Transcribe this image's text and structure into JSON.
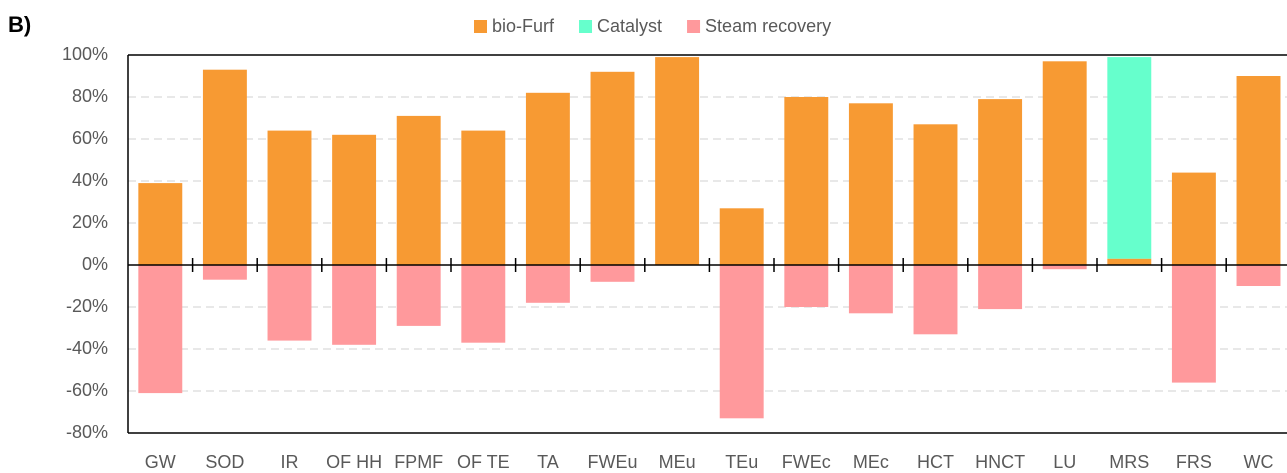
{
  "chart_data": {
    "type": "bar",
    "stacked": true,
    "panel_label": "B)",
    "categories": [
      "GW",
      "SOD",
      "IR",
      "OF HH",
      "FPMF",
      "OF TE",
      "TA",
      "FWEu",
      "MEu",
      "TEu",
      "FWEc",
      "MEc",
      "HCT",
      "HNCT",
      "LU",
      "MRS",
      "FRS",
      "WC"
    ],
    "series": [
      {
        "name": "bio-Furf",
        "color": "#f79a33",
        "values": [
          39,
          93,
          64,
          62,
          71,
          64,
          82,
          92,
          99,
          27,
          80,
          77,
          67,
          79,
          97,
          3,
          44,
          90
        ]
      },
      {
        "name": "Catalyst",
        "color": "#66ffcc",
        "values": [
          0,
          0,
          0,
          0,
          0,
          0,
          0,
          0,
          0,
          0,
          0,
          0,
          0,
          0,
          0,
          96,
          0,
          0
        ]
      },
      {
        "name": "Steam recovery",
        "color": "#ff999c",
        "values": [
          -61,
          -7,
          -36,
          -38,
          -29,
          -37,
          -18,
          -8,
          0,
          -73,
          -20,
          -23,
          -33,
          -21,
          -2,
          0,
          -56,
          -10
        ]
      }
    ],
    "ylim": [
      -80,
      100
    ],
    "yticks": [
      {
        "value": -80,
        "label": "-80%"
      },
      {
        "value": -60,
        "label": "-60%"
      },
      {
        "value": -40,
        "label": "-40%"
      },
      {
        "value": -20,
        "label": "-20%"
      },
      {
        "value": 0,
        "label": "0%"
      },
      {
        "value": 20,
        "label": "20%"
      },
      {
        "value": 40,
        "label": "40%"
      },
      {
        "value": 60,
        "label": "60%"
      },
      {
        "value": 80,
        "label": "80%"
      },
      {
        "value": 100,
        "label": "100%"
      }
    ],
    "grid": true,
    "legend": "top"
  }
}
